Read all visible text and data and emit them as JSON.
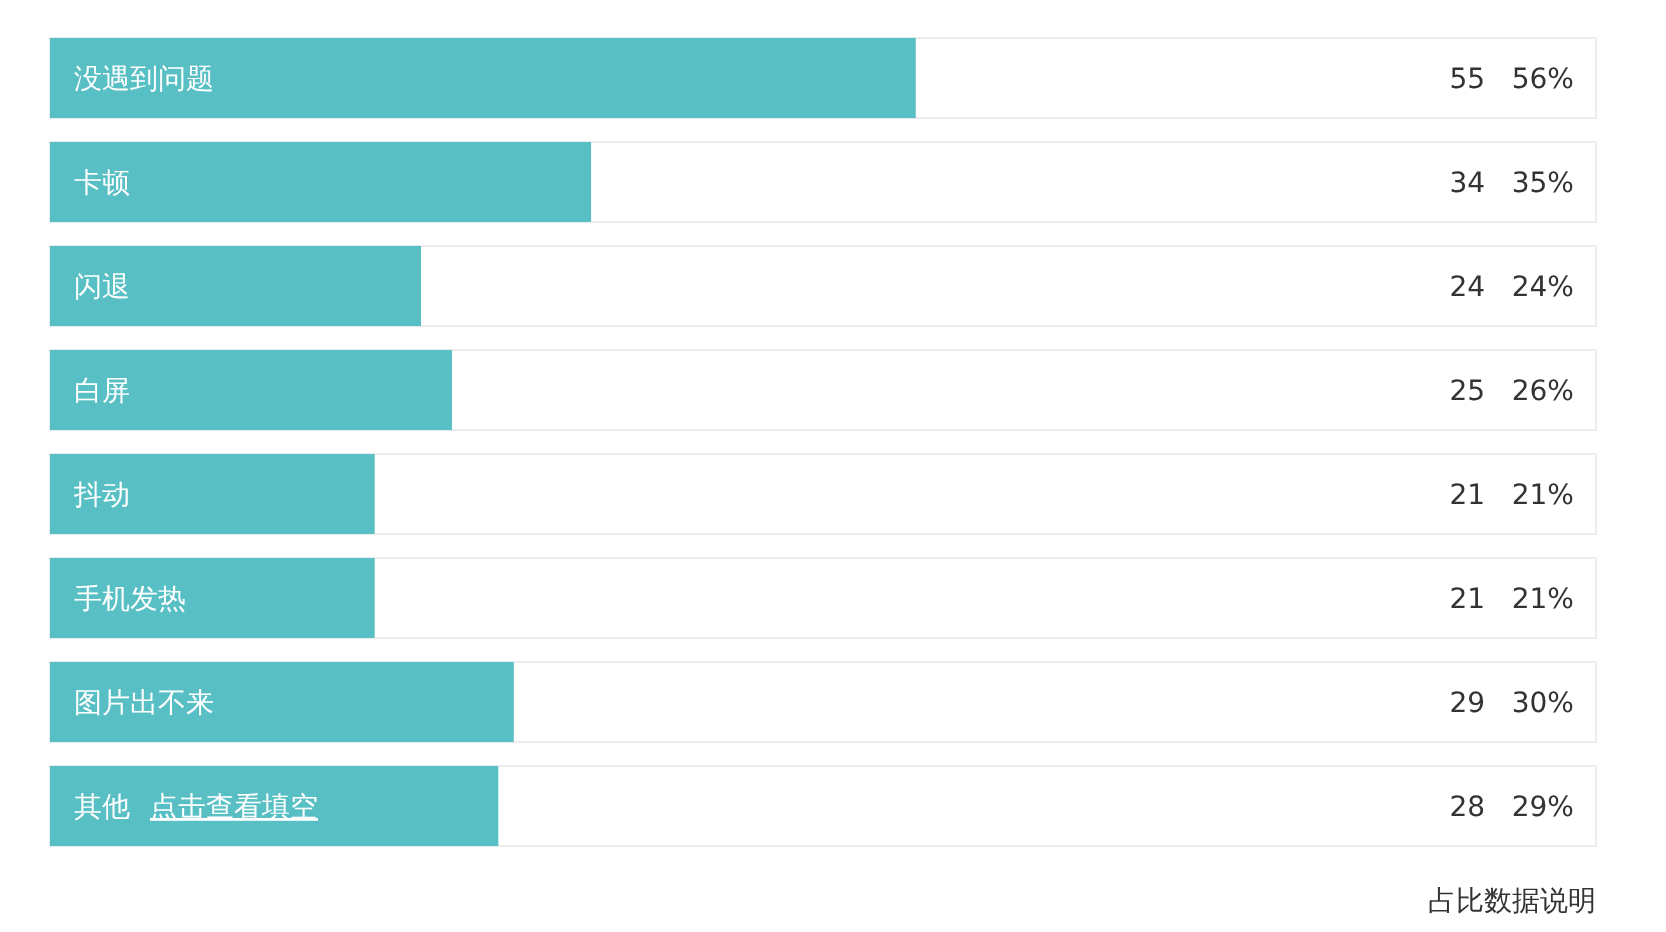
{
  "chart_data": {
    "type": "bar",
    "orientation": "horizontal",
    "categories": [
      "没遇到问题",
      "卡顿",
      "闪退",
      "白屏",
      "抖动",
      "手机发热",
      "图片出不来",
      "其他"
    ],
    "values": [
      56,
      35,
      24,
      26,
      21,
      21,
      30,
      29
    ],
    "value_labels": [
      "55   56%",
      "34   35%",
      "24   24%",
      "25   26%",
      "21   21%",
      "21   21%",
      "29   30%",
      "28   29%"
    ],
    "color": "#58bfc4",
    "xlim": [
      0,
      100
    ],
    "annotations": [
      {
        "text": "点击查看填空",
        "y": "其他"
      },
      "占比数据说明"
    ]
  }
}
